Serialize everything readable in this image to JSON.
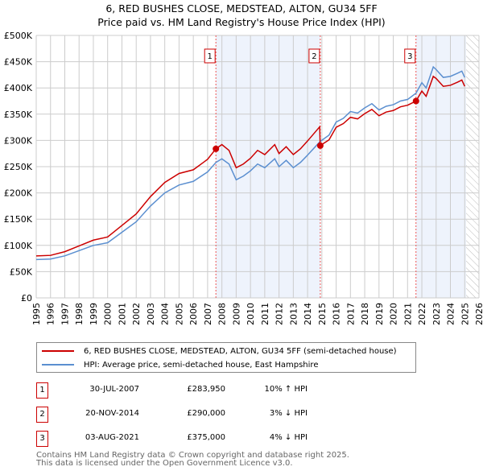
{
  "title_line1": "6, RED BUSHES CLOSE, MEDSTEAD, ALTON, GU34 5FF",
  "title_line2": "Price paid vs. HM Land Registry's House Price Index (HPI)",
  "colors": {
    "property": "#cc0000",
    "hpi": "#5b8fd0",
    "shade": "#eef3fc"
  },
  "chart_data": {
    "type": "line",
    "xlim": [
      1995,
      2026
    ],
    "ylim": [
      0,
      500000
    ],
    "xticks": [
      "1995",
      "1996",
      "1997",
      "1998",
      "1999",
      "2000",
      "2001",
      "2002",
      "2003",
      "2004",
      "2005",
      "2006",
      "2007",
      "2008",
      "2009",
      "2010",
      "2011",
      "2012",
      "2013",
      "2014",
      "2015",
      "2016",
      "2017",
      "2018",
      "2019",
      "2020",
      "2021",
      "2022",
      "2023",
      "2024",
      "2025",
      "2026"
    ],
    "yticks": [
      {
        "v": 0,
        "label": "£0"
      },
      {
        "v": 50000,
        "label": "£50K"
      },
      {
        "v": 100000,
        "label": "£100K"
      },
      {
        "v": 150000,
        "label": "£150K"
      },
      {
        "v": 200000,
        "label": "£200K"
      },
      {
        "v": 250000,
        "label": "£250K"
      },
      {
        "v": 300000,
        "label": "£300K"
      },
      {
        "v": 350000,
        "label": "£350K"
      },
      {
        "v": 400000,
        "label": "£400K"
      },
      {
        "v": 450000,
        "label": "£450K"
      },
      {
        "v": 500000,
        "label": "£500K"
      }
    ],
    "hatch_from": 2025.1,
    "series": [
      {
        "name": "6, RED BUSHES CLOSE, MEDSTEAD, ALTON, GU34 5FF (semi-detached house)",
        "color": "#cc0000",
        "x": [
          1995,
          1996,
          1997,
          1998,
          1999,
          2000,
          2001,
          2002,
          2003,
          2004,
          2005,
          2006,
          2007,
          2007.58,
          2008,
          2008.5,
          2009,
          2009.5,
          2010,
          2010.5,
          2011,
          2011.7,
          2012,
          2012.5,
          2013,
          2013.5,
          2014,
          2014.85,
          2014.88,
          2015.5,
          2016,
          2016.5,
          2017,
          2017.5,
          2018,
          2018.5,
          2019,
          2019.5,
          2020,
          2020.5,
          2021,
          2021.59,
          2022,
          2022.3,
          2022.8,
          2023,
          2023.5,
          2024,
          2024.5,
          2024.8,
          2025
        ],
        "y": [
          80,
          81,
          88,
          99,
          110,
          116,
          138,
          160,
          193,
          220,
          237,
          244,
          264,
          284,
          292,
          281,
          248,
          255,
          266,
          281,
          273,
          292,
          275,
          288,
          273,
          284,
          299,
          326,
          290,
          301,
          325,
          332,
          344,
          341,
          351,
          359,
          347,
          354,
          357,
          364,
          367,
          375,
          394,
          384,
          422,
          418,
          403,
          405,
          411,
          415,
          403
        ]
      },
      {
        "name": "HPI: Average price, semi-detached house, East Hampshire",
        "color": "#5b8fd0",
        "x": [
          1995,
          1996,
          1997,
          1998,
          1999,
          2000,
          2001,
          2002,
          2003,
          2004,
          2005,
          2006,
          2007,
          2007.58,
          2008,
          2008.5,
          2009,
          2009.5,
          2010,
          2010.5,
          2011,
          2011.7,
          2012,
          2012.5,
          2013,
          2013.5,
          2014,
          2014.88,
          2015.5,
          2016,
          2016.5,
          2017,
          2017.5,
          2018,
          2018.5,
          2019,
          2019.5,
          2020,
          2020.5,
          2021,
          2021.59,
          2022,
          2022.3,
          2022.8,
          2023,
          2023.5,
          2024,
          2024.5,
          2024.8,
          2025
        ],
        "y": [
          73,
          74,
          80,
          90,
          100,
          105,
          125,
          145,
          175,
          200,
          215,
          222,
          240,
          258,
          265,
          255,
          225,
          232,
          242,
          255,
          248,
          265,
          250,
          262,
          248,
          258,
          272,
          298,
          310,
          335,
          342,
          355,
          352,
          362,
          370,
          358,
          365,
          368,
          375,
          378,
          390,
          410,
          400,
          440,
          435,
          420,
          422,
          428,
          432,
          420
        ]
      }
    ],
    "y_units": "thousands GBP",
    "sales": [
      {
        "n": "1",
        "x": 2007.58,
        "y": 283950,
        "date": "30-JUL-2007",
        "price": "£283,950",
        "vs": "10% ↑ HPI"
      },
      {
        "n": "2",
        "x": 2014.89,
        "y": 290000,
        "date": "20-NOV-2014",
        "price": "£290,000",
        "vs": "3% ↓ HPI"
      },
      {
        "n": "3",
        "x": 2021.59,
        "y": 375000,
        "date": "03-AUG-2021",
        "price": "£375,000",
        "vs": "4% ↓ HPI"
      }
    ]
  },
  "legend": {
    "property": "6, RED BUSHES CLOSE, MEDSTEAD, ALTON, GU34 5FF (semi-detached house)",
    "hpi": "HPI: Average price, semi-detached house, East Hampshire"
  },
  "footer": {
    "line1": "Contains HM Land Registry data © Crown copyright and database right 2025.",
    "line2": "This data is licensed under the Open Government Licence v3.0."
  }
}
